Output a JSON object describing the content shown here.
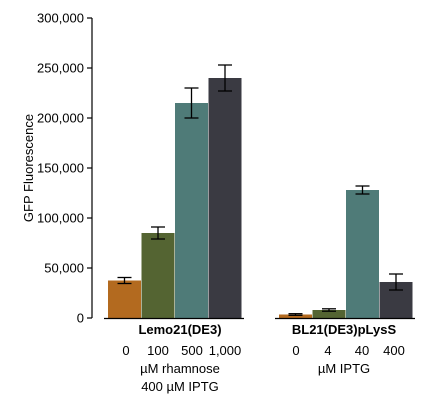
{
  "chart_data": {
    "type": "bar",
    "ylabel": "GFP Fluorescence",
    "ylim": [
      0,
      300000
    ],
    "yticks": [
      0,
      50000,
      100000,
      150000,
      200000,
      250000,
      300000
    ],
    "ytick_labels": [
      "0",
      "50,000",
      "100,000",
      "150,000",
      "200,000",
      "250,000",
      "300,000"
    ],
    "grid": false,
    "groups": [
      {
        "name": "Lemo21(DE3)",
        "categories": [
          "0",
          "100",
          "500",
          "1,000"
        ],
        "values": [
          37500,
          85000,
          215000,
          240000
        ],
        "errors": [
          3000,
          6000,
          15000,
          13000
        ],
        "colors": [
          "#b36a1f",
          "#546432",
          "#4f7b78",
          "#3a3a42"
        ],
        "condition_lines": [
          "µM rhamnose",
          "400 µM IPTG"
        ]
      },
      {
        "name": "BL21(DE3)pLysS",
        "categories": [
          "0",
          "4",
          "40",
          "400"
        ],
        "values": [
          3500,
          8000,
          128000,
          36000
        ],
        "errors": [
          800,
          1200,
          4000,
          8000
        ],
        "colors": [
          "#b36a1f",
          "#546432",
          "#4f7b78",
          "#3a3a42"
        ],
        "condition_lines": [
          "µM IPTG"
        ]
      }
    ]
  }
}
